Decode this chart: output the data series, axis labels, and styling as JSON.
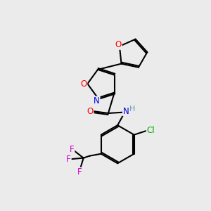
{
  "bg_color": "#ebebeb",
  "bond_color": "black",
  "bond_width": 1.5,
  "atom_colors": {
    "O": "#ff0000",
    "N_iso": "#0000ff",
    "O_amide": "#ff0000",
    "N_amide": "#0000dd",
    "H": "#6699aa",
    "Cl": "#00aa00",
    "F": "#cc00cc"
  },
  "figsize": [
    3.0,
    3.0
  ],
  "dpi": 100
}
